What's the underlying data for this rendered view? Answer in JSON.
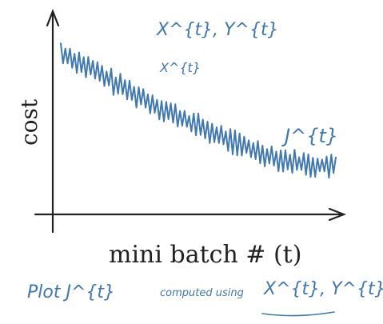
{
  "chart_data": {
    "type": "line",
    "title": "",
    "xlabel": "mini batch # (t)",
    "ylabel": "cost",
    "series": [
      {
        "name": "J^{t}",
        "trend_x": [
          0,
          0.1,
          0.2,
          0.3,
          0.4,
          0.5,
          0.6,
          0.7,
          0.8,
          0.9,
          1.0
        ],
        "trend_y": [
          0.88,
          0.8,
          0.71,
          0.63,
          0.55,
          0.48,
          0.41,
          0.35,
          0.3,
          0.27,
          0.26
        ],
        "oscillation_amplitude": 0.1,
        "oscillation_count": 60
      }
    ],
    "annotations": {
      "top": "X^{t}, Y^{t}",
      "top_small": "X^{t}",
      "curve_label": "J^{t}",
      "bottom_note_prefix": "Plot J^{t}",
      "bottom_note_middle": "computed using",
      "bottom_note_suffix": "X^{t}, Y^{t}"
    },
    "grid": false,
    "legend": "none"
  },
  "colors": {
    "ink": "#3f78b3",
    "axis": "#222222"
  }
}
